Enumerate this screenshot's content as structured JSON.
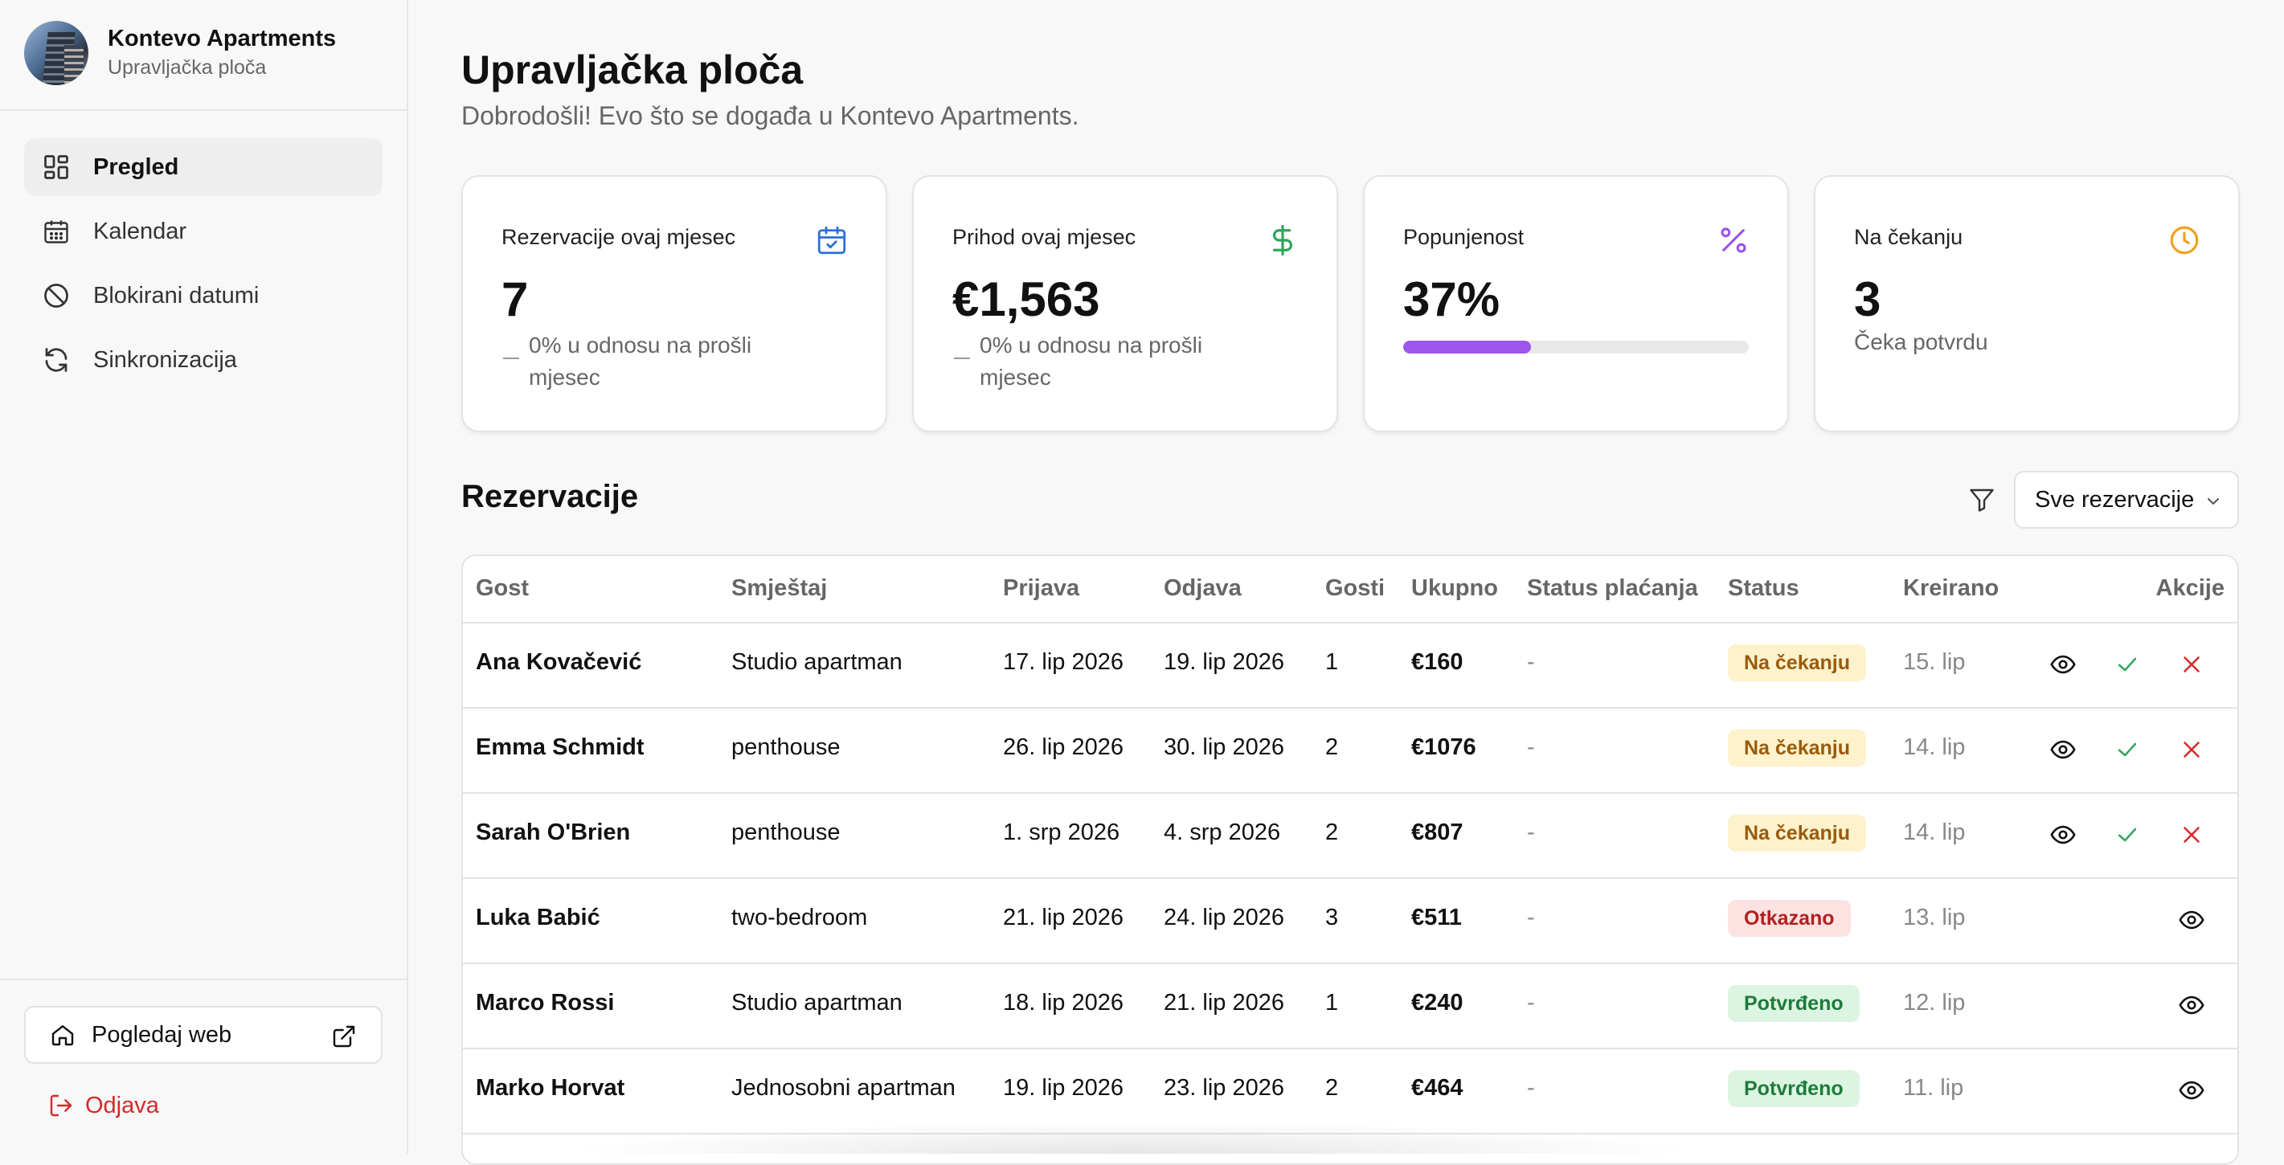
{
  "sidebar": {
    "brand_title": "Kontevo Apartments",
    "brand_subtitle": "Upravljačka ploča",
    "nav": [
      {
        "label": "Pregled",
        "icon": "dashboard-icon",
        "active": true
      },
      {
        "label": "Kalendar",
        "icon": "calendar-icon",
        "active": false
      },
      {
        "label": "Blokirani datumi",
        "icon": "blocked-icon",
        "active": false
      },
      {
        "label": "Sinkronizacija",
        "icon": "sync-icon",
        "active": false
      }
    ],
    "view_web_label": "Pogledaj web",
    "logout_label": "Odjava"
  },
  "header": {
    "title": "Upravljačka ploča",
    "subtitle": "Dobrodošli! Evo što se događa u Kontevo Apartments."
  },
  "stats": {
    "bookings": {
      "title": "Rezervacije ovaj mjesec",
      "value": "7",
      "trend": "0% u odnosu na prošli mjesec",
      "icon": "calendar-check-icon"
    },
    "revenue": {
      "title": "Prihod ovaj mjesec",
      "value": "€1,563",
      "trend": "0% u odnosu na prošli mjesec",
      "icon": "dollar-icon"
    },
    "occupancy": {
      "title": "Popunjenost",
      "value": "37%",
      "progress_percent": 37,
      "icon": "percent-icon"
    },
    "pending": {
      "title": "Na čekanju",
      "value": "3",
      "caption": "Čeka potvrdu",
      "icon": "clock-icon"
    }
  },
  "reservations": {
    "title": "Rezervacije",
    "filter_selected": "Sve rezervacije",
    "columns": {
      "guest": "Gost",
      "unit": "Smještaj",
      "checkin": "Prijava",
      "checkout": "Odjava",
      "guests": "Gosti",
      "total": "Ukupno",
      "payment": "Status plaćanja",
      "status": "Status",
      "created": "Kreirano",
      "actions": "Akcije"
    },
    "rows": [
      {
        "guest": "Ana Kovačević",
        "unit": "Studio apartman",
        "checkin": "17. lip 2026",
        "checkout": "19. lip 2026",
        "guests": "1",
        "total": "€160",
        "payment": "-",
        "status": "Na čekanju",
        "status_kind": "pending",
        "created": "15. lip"
      },
      {
        "guest": "Emma Schmidt",
        "unit": "penthouse",
        "checkin": "26. lip 2026",
        "checkout": "30. lip 2026",
        "guests": "2",
        "total": "€1076",
        "payment": "-",
        "status": "Na čekanju",
        "status_kind": "pending",
        "created": "14. lip"
      },
      {
        "guest": "Sarah O'Brien",
        "unit": "penthouse",
        "checkin": "1. srp 2026",
        "checkout": "4. srp 2026",
        "guests": "2",
        "total": "€807",
        "payment": "-",
        "status": "Na čekanju",
        "status_kind": "pending",
        "created": "14. lip"
      },
      {
        "guest": "Luka Babić",
        "unit": "two-bedroom",
        "checkin": "21. lip 2026",
        "checkout": "24. lip 2026",
        "guests": "3",
        "total": "€511",
        "payment": "-",
        "status": "Otkazano",
        "status_kind": "cancelled",
        "created": "13. lip"
      },
      {
        "guest": "Marco Rossi",
        "unit": "Studio apartman",
        "checkin": "18. lip 2026",
        "checkout": "21. lip 2026",
        "guests": "1",
        "total": "€240",
        "payment": "-",
        "status": "Potvrđeno",
        "status_kind": "confirmed",
        "created": "12. lip"
      },
      {
        "guest": "Marko Horvat",
        "unit": "Jednosobni apartman",
        "checkin": "19. lip 2026",
        "checkout": "23. lip 2026",
        "guests": "2",
        "total": "€464",
        "payment": "-",
        "status": "Potvrđeno",
        "status_kind": "confirmed",
        "created": "11. lip"
      }
    ]
  },
  "colors": {
    "accent_purple": "#9d55ea",
    "calendar_blue": "#2f6fd6",
    "dollar_green": "#2fa55a",
    "clock_orange": "#f0a020",
    "danger_red": "#d42a2a",
    "approve_green": "#2fa55a"
  }
}
